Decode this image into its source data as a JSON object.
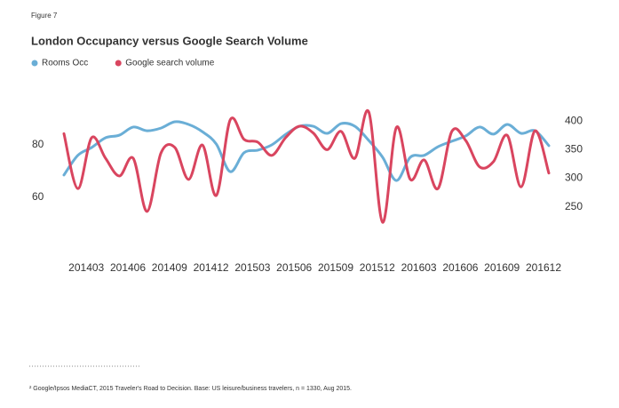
{
  "chart_data": {
    "type": "line",
    "figure_label": "Figure 7",
    "title": "London Occupancy versus Google Search Volume",
    "categories": [
      null,
      null,
      "201403",
      null,
      null,
      "201406",
      null,
      null,
      "201409",
      null,
      null,
      "201412",
      null,
      null,
      "201503",
      null,
      null,
      "201506",
      null,
      null,
      "201509",
      null,
      null,
      "201512",
      null,
      null,
      "201603",
      null,
      null,
      "201606",
      null,
      null,
      "201609",
      null,
      null,
      "201612"
    ],
    "series": [
      {
        "name": "Rooms Occ",
        "color": "#6aaed6",
        "values": [
          68.5,
          76,
          79,
          82.7,
          83.7,
          86.8,
          85.4,
          86.4,
          88.8,
          87.8,
          85,
          80.3,
          69.8,
          77,
          78,
          80,
          84,
          87.1,
          87.1,
          84.4,
          88.1,
          87.1,
          81.7,
          75.3,
          66.4,
          75.3,
          76,
          79.3,
          81.4,
          83.4,
          86.8,
          84.1,
          87.8,
          84.4,
          85.4,
          79.7
        ]
      },
      {
        "name": "Google search  volume",
        "color": "#d9455f",
        "axis": "y2",
        "values": [
          378,
          282,
          371,
          335,
          304,
          335,
          242,
          344,
          354,
          298,
          358,
          270,
          402,
          368,
          363,
          340,
          371,
          391,
          379,
          350,
          382,
          335,
          416,
          223,
          389,
          298,
          332,
          282,
          382,
          366,
          320,
          329,
          375,
          285,
          383,
          309
        ]
      }
    ],
    "ylim": [
      40,
      100
    ],
    "yticks": [
      60,
      80
    ],
    "y2lim": [
      175,
      450
    ],
    "y2ticks": [
      250,
      300,
      350,
      400
    ],
    "grid": false,
    "legend": "top-left",
    "footnote": "² Google/Ipsos MediaCT, 2015 Traveler's Road to Decision. Base: US leisure/business travelers, n = 1330, Aug 2015."
  }
}
